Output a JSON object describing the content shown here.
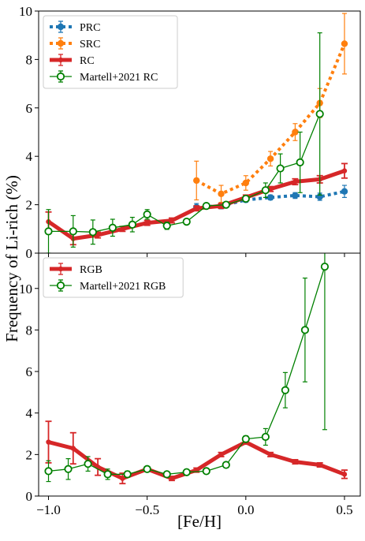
{
  "chart_data": {
    "type": "line",
    "shared_x": {
      "label": "[Fe/H]",
      "lim": [
        -1.05,
        0.58
      ],
      "ticks": [
        -1.0,
        -0.5,
        0.0,
        0.5
      ],
      "tick_labels": [
        "−1.0",
        "−0.5",
        "0.0",
        "0.5"
      ]
    },
    "shared_ylabel": "Frequency of Li-rich (%)",
    "panels": [
      {
        "name": "top",
        "ylim": [
          0,
          10
        ],
        "yticks": [
          0,
          2,
          4,
          6,
          8,
          10
        ],
        "ytick_labels": [
          "0",
          "2",
          "4",
          "6",
          "8",
          "10"
        ],
        "legend_position": "top-left",
        "series": [
          {
            "name": "PRC",
            "color": "#1f77b4",
            "style": "dotted",
            "marker": "filled-circle",
            "points": [
              {
                "x": -0.25,
                "y": 1.9,
                "err": 0.15
              },
              {
                "x": -0.125,
                "y": 1.95,
                "err": 0.12
              },
              {
                "x": 0.0,
                "y": 2.2,
                "err": 0.1
              },
              {
                "x": 0.125,
                "y": 2.3,
                "err": 0.1
              },
              {
                "x": 0.25,
                "y": 2.38,
                "err": 0.12
              },
              {
                "x": 0.375,
                "y": 2.33,
                "err": 0.15
              },
              {
                "x": 0.5,
                "y": 2.55,
                "err": 0.25
              }
            ]
          },
          {
            "name": "SRC",
            "color": "#ff7f0e",
            "style": "dotted",
            "marker": "filled-circle",
            "points": [
              {
                "x": -0.25,
                "y": 3.0,
                "err": 0.8
              },
              {
                "x": -0.125,
                "y": 2.45,
                "err": 0.35
              },
              {
                "x": 0.0,
                "y": 2.9,
                "err": 0.3
              },
              {
                "x": 0.125,
                "y": 3.9,
                "err": 0.3
              },
              {
                "x": 0.25,
                "y": 5.0,
                "err": 0.35
              },
              {
                "x": 0.375,
                "y": 6.2,
                "err": 0.6
              },
              {
                "x": 0.5,
                "y": 8.65,
                "err": 1.25
              }
            ]
          },
          {
            "name": "RC",
            "color": "#d62728",
            "style": "solid-thick",
            "marker": "filled-circle",
            "points": [
              {
                "x": -1.0,
                "y": 1.3,
                "err": 0.4
              },
              {
                "x": -0.875,
                "y": 0.6,
                "err": 0.25
              },
              {
                "x": -0.75,
                "y": 0.75,
                "err": 0.12
              },
              {
                "x": -0.625,
                "y": 1.0,
                "err": 0.1
              },
              {
                "x": -0.5,
                "y": 1.25,
                "err": 0.1
              },
              {
                "x": -0.375,
                "y": 1.35,
                "err": 0.1
              },
              {
                "x": -0.25,
                "y": 1.85,
                "err": 0.1
              },
              {
                "x": -0.125,
                "y": 1.95,
                "err": 0.1
              },
              {
                "x": 0.0,
                "y": 2.3,
                "err": 0.1
              },
              {
                "x": 0.125,
                "y": 2.65,
                "err": 0.1
              },
              {
                "x": 0.25,
                "y": 2.95,
                "err": 0.12
              },
              {
                "x": 0.375,
                "y": 3.05,
                "err": 0.15
              },
              {
                "x": 0.5,
                "y": 3.4,
                "err": 0.3
              }
            ]
          },
          {
            "name": "Martell+2021 RC",
            "color": "#008000",
            "style": "solid-thin",
            "marker": "open-circle",
            "points": [
              {
                "x": -1.0,
                "y": 0.9,
                "err": 0.9
              },
              {
                "x": -0.875,
                "y": 0.9,
                "err": 0.65
              },
              {
                "x": -0.775,
                "y": 0.87,
                "err": 0.5
              },
              {
                "x": -0.675,
                "y": 1.05,
                "err": 0.35
              },
              {
                "x": -0.575,
                "y": 1.18,
                "err": 0.3
              },
              {
                "x": -0.5,
                "y": 1.6,
                "err": 0.2
              },
              {
                "x": -0.4,
                "y": 1.13,
                "err": 0.15
              },
              {
                "x": -0.3,
                "y": 1.3,
                "err": 0.1
              },
              {
                "x": -0.2,
                "y": 1.95,
                "err": 0.1
              },
              {
                "x": -0.1,
                "y": 2.0,
                "err": 0.1
              },
              {
                "x": 0.0,
                "y": 2.25,
                "err": 0.1
              },
              {
                "x": 0.1,
                "y": 2.6,
                "err": 0.3
              },
              {
                "x": 0.175,
                "y": 3.5,
                "err": 0.6
              },
              {
                "x": 0.275,
                "y": 3.75,
                "err": 1.25
              },
              {
                "x": 0.375,
                "y": 5.75,
                "err": 3.35
              }
            ]
          }
        ]
      },
      {
        "name": "bottom",
        "ylim": [
          0,
          11.7
        ],
        "yticks": [
          0,
          2,
          4,
          6,
          8,
          10
        ],
        "ytick_labels": [
          "0",
          "2",
          "4",
          "6",
          "8",
          "10"
        ],
        "legend_position": "top-left",
        "series": [
          {
            "name": "RGB",
            "color": "#d62728",
            "style": "solid-thick",
            "marker": "filled-circle",
            "points": [
              {
                "x": -1.0,
                "y": 2.6,
                "err": 1.0
              },
              {
                "x": -0.875,
                "y": 2.3,
                "err": 0.75
              },
              {
                "x": -0.75,
                "y": 1.4,
                "err": 0.4
              },
              {
                "x": -0.625,
                "y": 0.85,
                "err": 0.25
              },
              {
                "x": -0.5,
                "y": 1.3,
                "err": 0.1
              },
              {
                "x": -0.375,
                "y": 0.85,
                "err": 0.1
              },
              {
                "x": -0.25,
                "y": 1.25,
                "err": 0.1
              },
              {
                "x": -0.125,
                "y": 2.0,
                "err": 0.1
              },
              {
                "x": 0.0,
                "y": 2.6,
                "err": 0.1
              },
              {
                "x": 0.125,
                "y": 2.0,
                "err": 0.1
              },
              {
                "x": 0.25,
                "y": 1.65,
                "err": 0.1
              },
              {
                "x": 0.375,
                "y": 1.5,
                "err": 0.1
              },
              {
                "x": 0.5,
                "y": 1.05,
                "err": 0.2
              }
            ]
          },
          {
            "name": "Martell+2021 RGB",
            "color": "#008000",
            "style": "solid-thin",
            "marker": "open-circle",
            "points": [
              {
                "x": -1.0,
                "y": 1.2,
                "err": 0.5
              },
              {
                "x": -0.9,
                "y": 1.3,
                "err": 0.5
              },
              {
                "x": -0.8,
                "y": 1.55,
                "err": 0.35
              },
              {
                "x": -0.7,
                "y": 1.05,
                "err": 0.25
              },
              {
                "x": -0.6,
                "y": 1.05,
                "err": 0.15
              },
              {
                "x": -0.5,
                "y": 1.3,
                "err": 0.1
              },
              {
                "x": -0.4,
                "y": 1.05,
                "err": 0.1
              },
              {
                "x": -0.3,
                "y": 1.15,
                "err": 0.1
              },
              {
                "x": -0.2,
                "y": 1.2,
                "err": 0.1
              },
              {
                "x": -0.1,
                "y": 1.5,
                "err": 0.1
              },
              {
                "x": 0.0,
                "y": 2.75,
                "err": 0.15
              },
              {
                "x": 0.1,
                "y": 2.85,
                "err": 0.4
              },
              {
                "x": 0.2,
                "y": 5.1,
                "err": 0.85
              },
              {
                "x": 0.3,
                "y": 8.0,
                "err": 2.5
              },
              {
                "x": 0.4,
                "y": 11.05,
                "err": 7.85
              }
            ]
          }
        ]
      }
    ]
  }
}
